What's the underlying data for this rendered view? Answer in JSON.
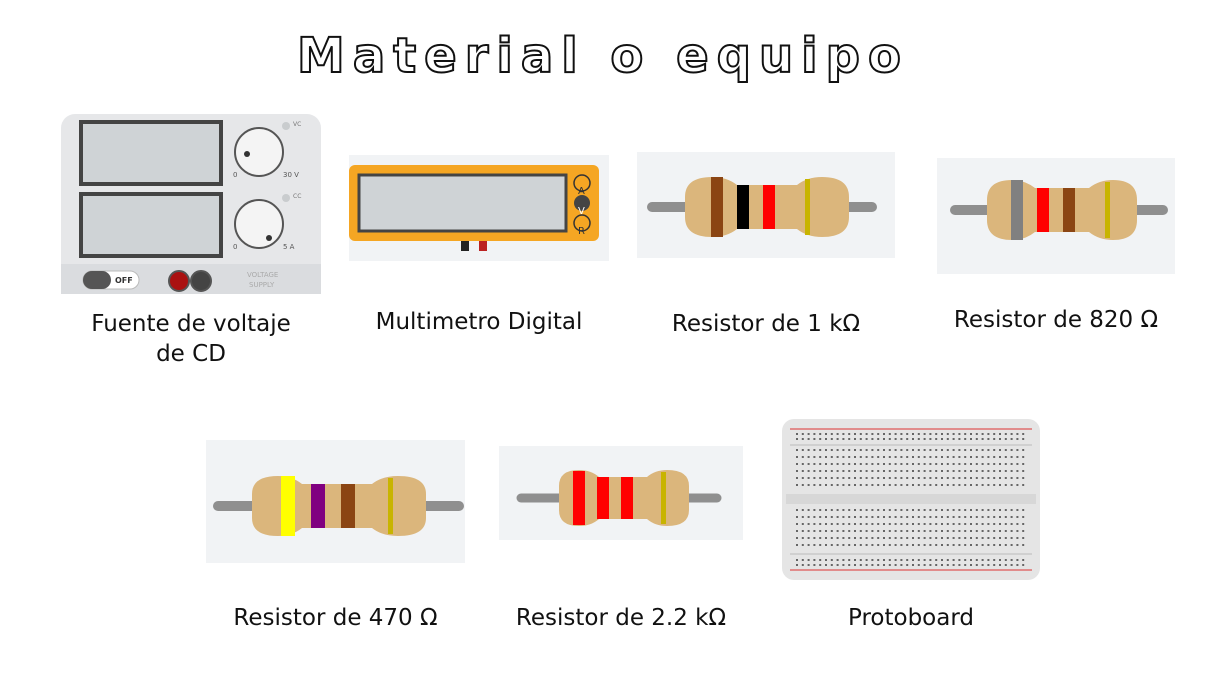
{
  "title": "Material o equipo",
  "items": [
    {
      "label": "Fuente de voltaje\nde  CD"
    },
    {
      "label": "Multimetro Digital"
    },
    {
      "label": "Resistor de 1 kΩ"
    },
    {
      "label": "Resistor de 820 Ω"
    },
    {
      "label": "Resistor de 470 Ω"
    },
    {
      "label": "Resistor de 2.2 kΩ"
    },
    {
      "label": "Protoboard"
    }
  ],
  "power_supply": {
    "knob_labels": [
      "0",
      "30 V",
      "0",
      "5 A"
    ],
    "indicator_labels": [
      "VC",
      "CC"
    ],
    "switch_label": "OFF",
    "brand_text": [
      "VOLTAGE",
      "SUPPLY"
    ]
  },
  "multimeter": {
    "mode_buttons": [
      "A",
      "V",
      "R"
    ]
  },
  "resistor_colors": {
    "r1k": [
      "#8B4513",
      "#000000",
      "#FF0000"
    ],
    "r820": [
      "#808080",
      "#FF0000",
      "#8B4513"
    ],
    "r470": [
      "#FFFF00",
      "#800080",
      "#8B4513"
    ],
    "r2k2": [
      "#FF0000",
      "#FF0000",
      "#FF0000"
    ],
    "tolerance": "#c8b400",
    "body": "#dbb67c"
  }
}
